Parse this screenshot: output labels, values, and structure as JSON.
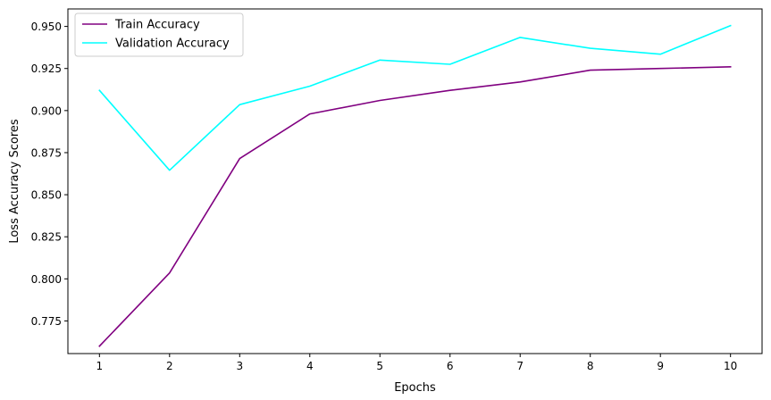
{
  "chart_data": {
    "type": "line",
    "title": "",
    "xlabel": "Epochs",
    "ylabel": "Loss Accuracy Scores",
    "x": [
      1,
      2,
      3,
      4,
      5,
      6,
      7,
      8,
      9,
      10
    ],
    "xlim": [
      0.55,
      10.45
    ],
    "ylim": [
      0.7556,
      0.9604
    ],
    "xticks": [
      "1",
      "2",
      "3",
      "4",
      "5",
      "6",
      "7",
      "8",
      "9",
      "10"
    ],
    "yticks": [
      "0.775",
      "0.800",
      "0.825",
      "0.850",
      "0.875",
      "0.900",
      "0.925",
      "0.950"
    ],
    "grid": false,
    "legend_position": "top-left",
    "series": [
      {
        "name": "Train Accuracy",
        "color": "#800080",
        "values": [
          0.76,
          0.8035,
          0.8715,
          0.898,
          0.906,
          0.912,
          0.917,
          0.924,
          0.925,
          0.926
        ]
      },
      {
        "name": "Validation Accuracy",
        "color": "#00ffff",
        "values": [
          0.912,
          0.8645,
          0.9035,
          0.9145,
          0.93,
          0.9275,
          0.9435,
          0.937,
          0.9335,
          0.9505
        ]
      }
    ]
  }
}
